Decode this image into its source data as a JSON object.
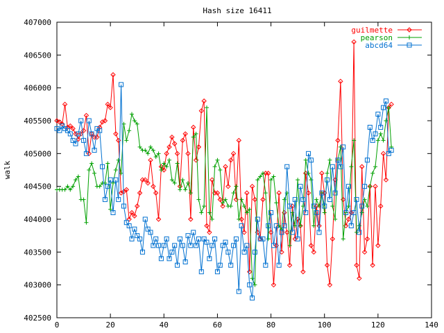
{
  "chart_data": {
    "type": "line",
    "title": "Hash size 16411",
    "xlabel": "",
    "ylabel": "walk",
    "xlim": [
      0,
      140
    ],
    "ylim": [
      402500,
      407000
    ],
    "xticks": [
      0,
      20,
      40,
      60,
      80,
      100,
      120,
      140
    ],
    "yticks": [
      402500,
      403000,
      403500,
      404000,
      404500,
      405000,
      405500,
      406000,
      406500,
      407000
    ],
    "grid": false,
    "legend_position": "top-right",
    "series": [
      {
        "name": "guilmette",
        "color": "#ff0000",
        "marker": "diamond",
        "values": [
          405500,
          405480,
          405450,
          405750,
          405400,
          405420,
          405380,
          405300,
          405220,
          405300,
          405350,
          405580,
          405000,
          405300,
          405250,
          405250,
          405400,
          405480,
          405500,
          405750,
          405700,
          406200,
          405300,
          405200,
          404400,
          404420,
          404450,
          404000,
          404100,
          404050,
          404200,
          404400,
          404600,
          404600,
          404550,
          404900,
          404500,
          404400,
          404000,
          404800,
          404750,
          405000,
          405100,
          405250,
          405150,
          405000,
          404500,
          405200,
          405300,
          405000,
          404000,
          405400,
          404900,
          405100,
          405650,
          405800,
          403900,
          403800,
          404600,
          404400,
          404400,
          404300,
          404200,
          404800,
          404500,
          404900,
          405000,
          404300,
          405200,
          404000,
          403800,
          404400,
          403200,
          404500,
          404300,
          403800,
          403700,
          404300,
          404700,
          404700,
          403800,
          403000,
          403600,
          404400,
          403500,
          404100,
          403800,
          403300,
          404200,
          403700,
          404000,
          403900,
          403200,
          404700,
          404400,
          403600,
          403500,
          404200,
          403900,
          404700,
          404400,
          403300,
          403000,
          403700,
          404600,
          405200,
          406100,
          404300,
          403900,
          404000,
          404100,
          406700,
          403300,
          403100,
          404800,
          403500,
          403700,
          404500,
          403300,
          404500,
          403600,
          404200,
          405000,
          404600,
          405700,
          405750
        ]
      },
      {
        "name": "pearson",
        "color": "#00a000",
        "marker": "plus",
        "values": [
          404450,
          404450,
          404450,
          404450,
          404500,
          404450,
          404500,
          404600,
          404650,
          404300,
          404300,
          403950,
          404750,
          404850,
          404700,
          404500,
          404500,
          404550,
          404550,
          404850,
          404150,
          404550,
          404750,
          404900,
          404700,
          405450,
          405200,
          405350,
          405600,
          405500,
          405450,
          405100,
          405050,
          405050,
          405000,
          405100,
          405050,
          404950,
          405000,
          404750,
          404850,
          404800,
          404900,
          404600,
          404550,
          404850,
          404450,
          404600,
          404450,
          404550,
          404400,
          405250,
          405300,
          404300,
          404100,
          404200,
          405700,
          404100,
          404000,
          404800,
          404900,
          404750,
          404250,
          404300,
          404200,
          404200,
          404400,
          404500,
          404000,
          404300,
          404200,
          404100,
          404150,
          403100,
          403000,
          404600,
          404650,
          404700,
          404400,
          403700,
          404600,
          404650,
          404250,
          403900,
          403850,
          404300,
          404400,
          403600,
          404100,
          403900,
          404600,
          403900,
          404200,
          404900,
          404700,
          404600,
          403900,
          404300,
          404200,
          404400,
          404100,
          404700,
          404900,
          404200,
          404000,
          404900,
          405100,
          403700,
          404100,
          404200,
          404800,
          405200,
          403800,
          403900,
          404100,
          404300,
          404200,
          404500,
          404700,
          404800,
          405200,
          405300,
          405200,
          405500,
          405700,
          405100
        ]
      },
      {
        "name": "abcd64",
        "color": "#0070d0",
        "marker": "square",
        "values": [
          405380,
          405350,
          405420,
          405380,
          405350,
          405300,
          405200,
          405150,
          405300,
          405500,
          405200,
          405000,
          405500,
          405300,
          405050,
          405380,
          405350,
          404800,
          404300,
          404500,
          404600,
          404100,
          404600,
          404300,
          406050,
          404200,
          403950,
          403900,
          403700,
          403850,
          403750,
          403700,
          403500,
          404000,
          403850,
          403800,
          403600,
          403700,
          403600,
          403400,
          403600,
          403700,
          403400,
          403500,
          403600,
          403300,
          403700,
          403600,
          403350,
          403750,
          403600,
          403800,
          403600,
          403700,
          403200,
          403700,
          403650,
          403400,
          403600,
          403700,
          403200,
          403300,
          403600,
          403650,
          403500,
          403300,
          403600,
          403700,
          402900,
          403900,
          403500,
          403600,
          403000,
          402800,
          403500,
          404000,
          403700,
          403700,
          403300,
          403900,
          404100,
          403600,
          403900,
          403300,
          403800,
          403900,
          404800,
          404200,
          403800,
          404300,
          403700,
          404500,
          404300,
          404100,
          405000,
          404900,
          404200,
          404100,
          403800,
          404400,
          404200,
          404600,
          404300,
          404800,
          404400,
          404900,
          404800,
          405100,
          404100,
          404500,
          403900,
          404100,
          404300,
          403800,
          404200,
          404500,
          404900,
          405400,
          405200,
          405300,
          405600,
          405400,
          405700,
          405800,
          405000,
          405050
        ]
      }
    ]
  }
}
